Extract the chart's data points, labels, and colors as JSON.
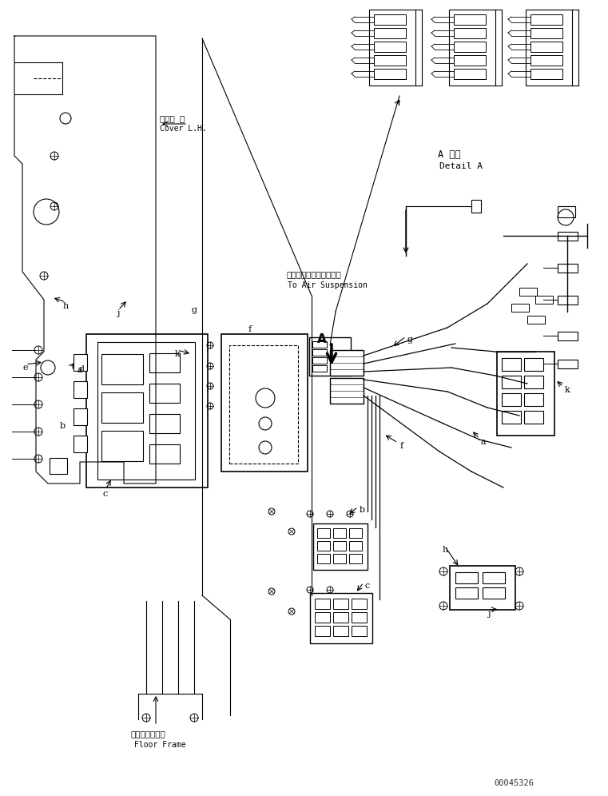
{
  "fig_width": 7.61,
  "fig_height": 9.96,
  "dpi": 100,
  "bg_color": "#ffffff",
  "line_color": "#000000",
  "line_width": 0.8,
  "part_number": "00045326",
  "labels": {
    "cover_lh_jp": "カバー 左",
    "cover_lh_en": "Cover L.H.",
    "floor_frame_jp": "フロアフレーム",
    "floor_frame_en": "Floor Frame",
    "air_suspension_jp": "エアーサスペンションへ",
    "air_suspension_en": "To Air Suspension",
    "detail_a_jp": "A 詳細",
    "detail_a_en": "Detail A"
  }
}
